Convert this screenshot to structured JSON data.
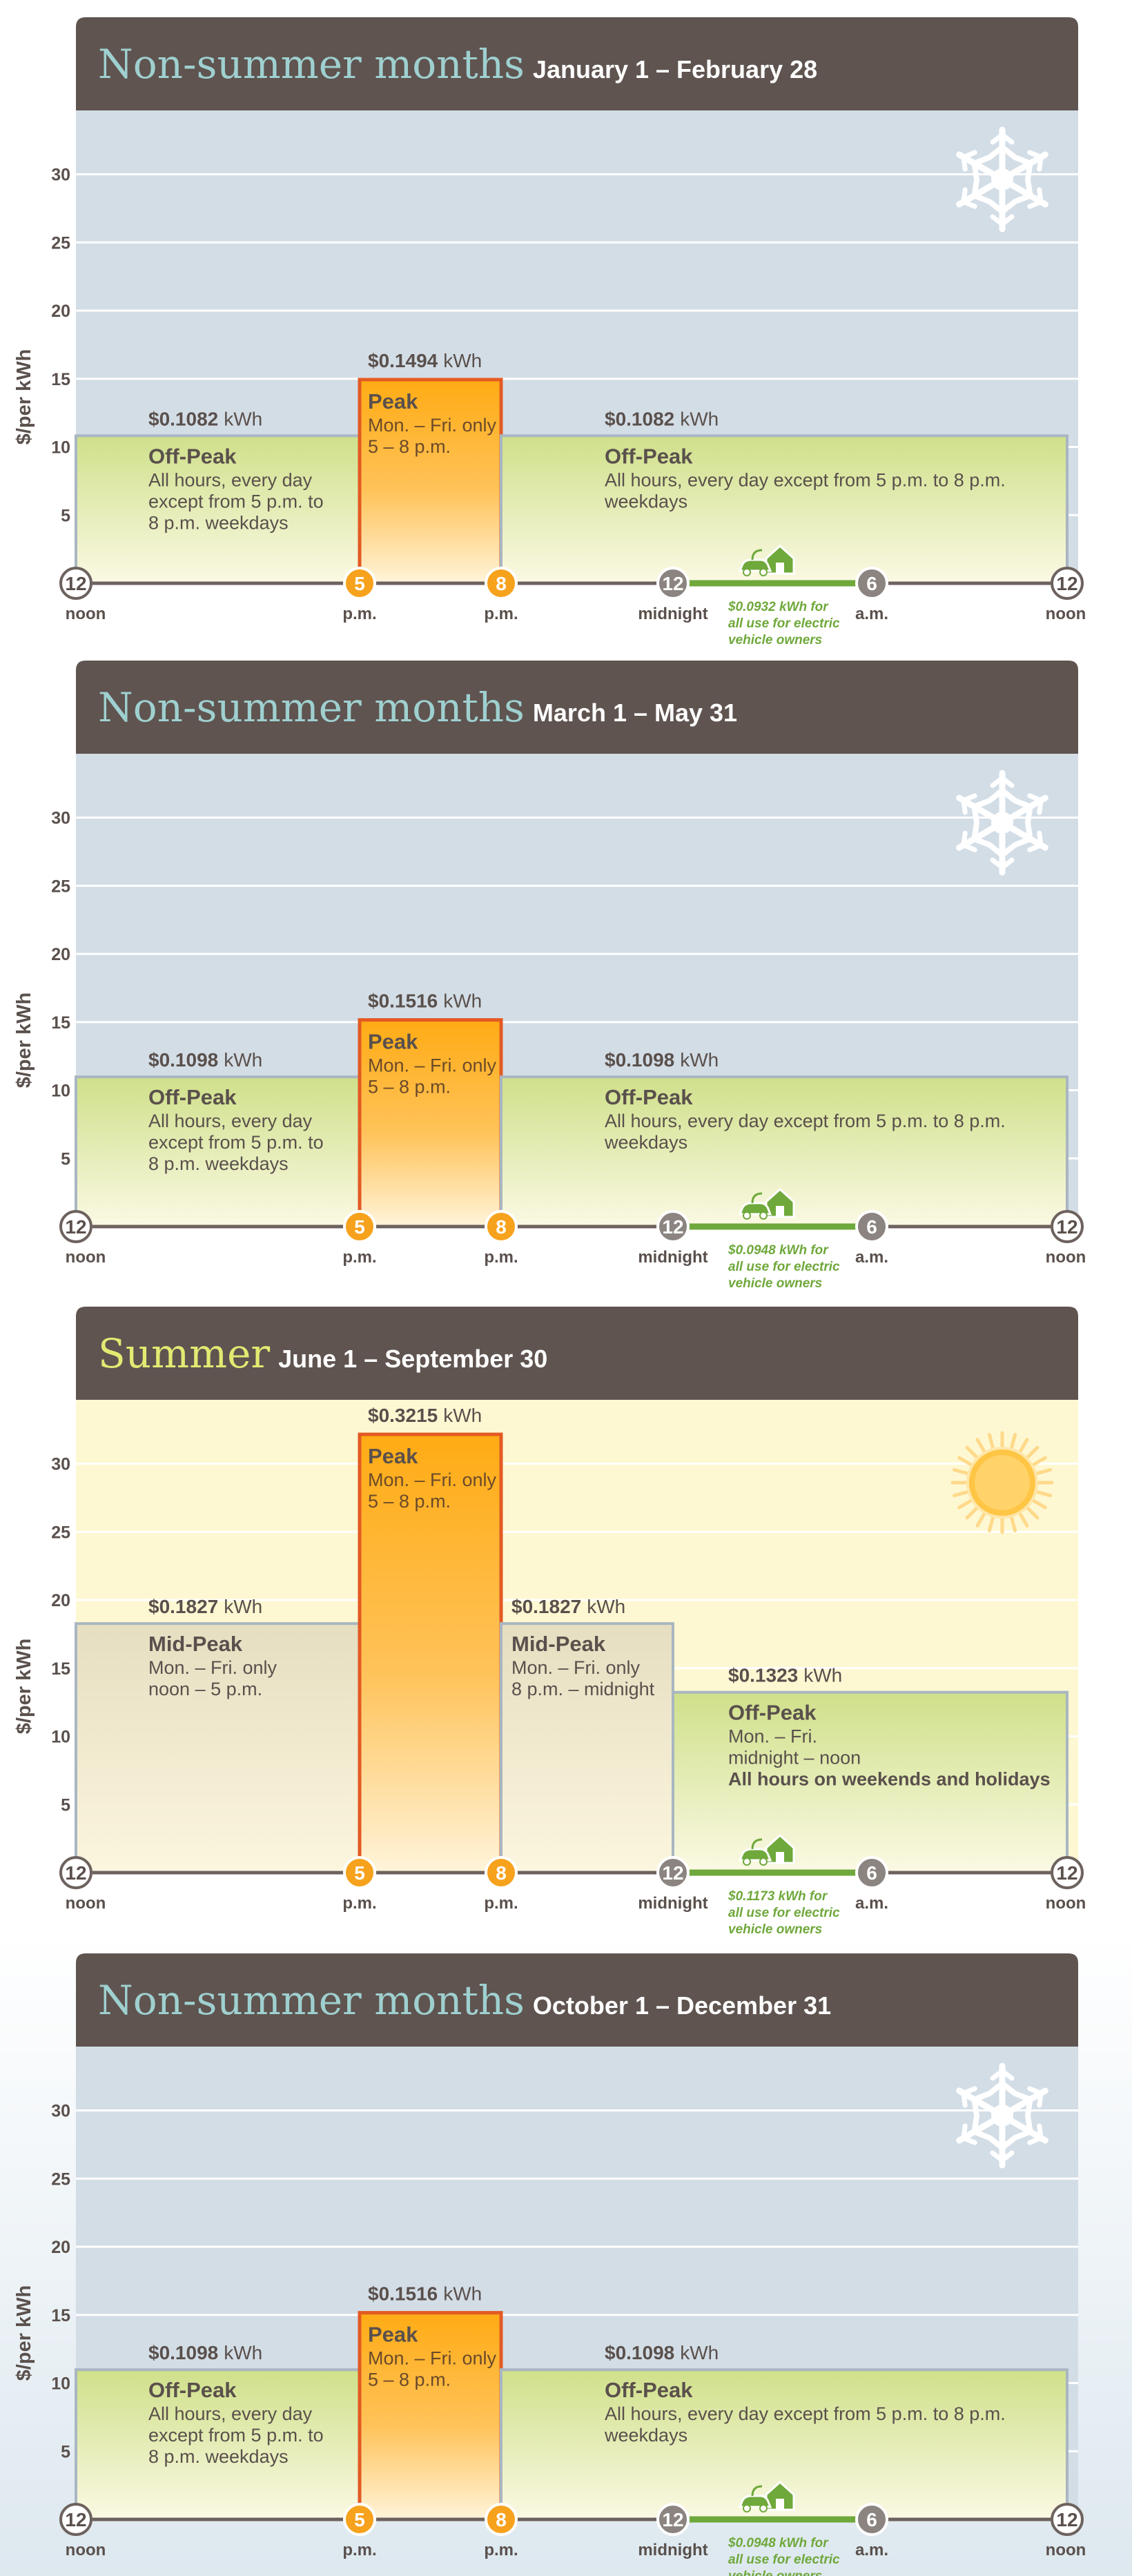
{
  "colors": {
    "header_bg": "#5f5450",
    "winter_title": "#9fd0d0",
    "summer_title": "#e2ea72",
    "winter_bg": "#d3dde6",
    "summer_bg": "#fdf8d2",
    "peak_fill": "#ffab14",
    "peak_stroke": "#e35a23",
    "offpeak_fill": "#d7e69a",
    "midpeak_fill": "#eae3c6",
    "ev_green": "#6fa83b",
    "axis_line": "#6d625e",
    "hour_marker_peak": "#f6a21d",
    "hour_marker_other": "#8b8480",
    "text_dark": "#5a504c"
  },
  "icons": {
    "winter": "snowflake-icon",
    "summer": "sun-icon",
    "ev": "electric-car-house-icon"
  },
  "common": {
    "ylabel": "$/per kWh",
    "yticks": [
      5,
      10,
      15,
      20,
      25,
      30
    ],
    "ylim": [
      0,
      32
    ],
    "x_ticks": [
      {
        "hour": 12,
        "sub": "noon",
        "kind": "other"
      },
      {
        "hour": 5,
        "sub": "p.m.",
        "kind": "peak"
      },
      {
        "hour": 8,
        "sub": "p.m.",
        "kind": "peak"
      },
      {
        "hour": 12,
        "sub": "midnight",
        "kind": "other"
      },
      {
        "hour": 6,
        "sub": "a.m.",
        "kind": "other"
      },
      {
        "hour": 12,
        "sub": "noon",
        "kind": "other"
      }
    ],
    "unit": "kWh"
  },
  "chart_data": [
    {
      "type": "bar",
      "season": "winter",
      "title_main": "Non-summer months",
      "title_dates": "January 1 – February 28",
      "ylabel": "$/per kWh",
      "ylim": [
        0,
        32
      ],
      "periods": [
        {
          "kind": "offpeak",
          "start": 0,
          "end": 5,
          "rate_text": "$0.1082",
          "value": 10.82,
          "label": "Off-Peak",
          "desc": [
            "All hours, every day",
            "except from 5 p.m. to",
            "8 p.m. weekdays"
          ]
        },
        {
          "kind": "peak",
          "start": 5,
          "end": 8,
          "rate_text": "$0.1494",
          "value": 14.94,
          "label": "Peak",
          "desc": [
            "Mon. – Fri. only",
            "5 – 8 p.m."
          ]
        },
        {
          "kind": "offpeak",
          "start": 8,
          "end": 24,
          "rate_text": "$0.1082",
          "value": 10.82,
          "label": "Off-Peak",
          "desc": [
            "All hours, every day except from 5 p.m. to 8 p.m.",
            "weekdays"
          ]
        }
      ],
      "ev": {
        "start": 12,
        "end": 18,
        "rate_text": "$0.0932",
        "value": 9.32,
        "lines": [
          "$0.0932 kWh for",
          "all use for electric",
          "vehicle owners"
        ]
      }
    },
    {
      "type": "bar",
      "season": "winter",
      "title_main": "Non-summer months",
      "title_dates": "March 1 – May 31",
      "ylabel": "$/per kWh",
      "ylim": [
        0,
        32
      ],
      "periods": [
        {
          "kind": "offpeak",
          "start": 0,
          "end": 5,
          "rate_text": "$0.1098",
          "value": 10.98,
          "label": "Off-Peak",
          "desc": [
            "All hours, every day",
            "except from 5 p.m. to",
            "8 p.m. weekdays"
          ]
        },
        {
          "kind": "peak",
          "start": 5,
          "end": 8,
          "rate_text": "$0.1516",
          "value": 15.16,
          "label": "Peak",
          "desc": [
            "Mon. – Fri. only",
            "5 – 8 p.m."
          ]
        },
        {
          "kind": "offpeak",
          "start": 8,
          "end": 24,
          "rate_text": "$0.1098",
          "value": 10.98,
          "label": "Off-Peak",
          "desc": [
            "All hours, every day except from 5 p.m. to 8 p.m.",
            "weekdays"
          ]
        }
      ],
      "ev": {
        "start": 12,
        "end": 18,
        "rate_text": "$0.0948",
        "value": 9.48,
        "lines": [
          "$0.0948 kWh for",
          "all use for electric",
          "vehicle owners"
        ]
      }
    },
    {
      "type": "bar",
      "season": "summer",
      "title_main": "Summer",
      "title_dates": "June 1 – September 30",
      "ylabel": "$/per kWh",
      "ylim": [
        0,
        32
      ],
      "periods": [
        {
          "kind": "midpeak",
          "start": 0,
          "end": 5,
          "rate_text": "$0.1827",
          "value": 18.27,
          "label": "Mid-Peak",
          "desc": [
            "Mon. – Fri. only",
            "noon – 5 p.m."
          ]
        },
        {
          "kind": "peak",
          "start": 5,
          "end": 8,
          "rate_text": "$0.3215",
          "value": 32.15,
          "label": "Peak",
          "desc": [
            "Mon. – Fri. only",
            "5 – 8 p.m."
          ]
        },
        {
          "kind": "midpeak",
          "start": 8,
          "end": 12,
          "rate_text": "$0.1827",
          "value": 18.27,
          "label": "Mid-Peak",
          "desc": [
            "Mon. – Fri. only",
            "8 p.m. – midnight"
          ]
        },
        {
          "kind": "offpeak",
          "start": 12,
          "end": 24,
          "rate_text": "$0.1323",
          "value": 13.23,
          "label": "Off-Peak",
          "desc": [
            "Mon. – Fri.",
            "midnight – noon"
          ],
          "desc_bold": "All hours on weekends and holidays"
        }
      ],
      "ev": {
        "start": 12,
        "end": 18,
        "rate_text": "$0.1173",
        "value": 11.73,
        "lines": [
          "$0.1173 kWh for",
          "all use for electric",
          "vehicle owners"
        ]
      }
    },
    {
      "type": "bar",
      "season": "winter",
      "title_main": "Non-summer months",
      "title_dates": "October 1 – December 31",
      "ylabel": "$/per kWh",
      "ylim": [
        0,
        32
      ],
      "periods": [
        {
          "kind": "offpeak",
          "start": 0,
          "end": 5,
          "rate_text": "$0.1098",
          "value": 10.98,
          "label": "Off-Peak",
          "desc": [
            "All hours, every day",
            "except from 5 p.m. to",
            "8 p.m. weekdays"
          ]
        },
        {
          "kind": "peak",
          "start": 5,
          "end": 8,
          "rate_text": "$0.1516",
          "value": 15.16,
          "label": "Peak",
          "desc": [
            "Mon. – Fri. only",
            "5 – 8 p.m."
          ]
        },
        {
          "kind": "offpeak",
          "start": 8,
          "end": 24,
          "rate_text": "$0.1098",
          "value": 10.98,
          "label": "Off-Peak",
          "desc": [
            "All hours, every day except from 5 p.m. to 8 p.m.",
            "weekdays"
          ]
        }
      ],
      "ev": {
        "start": 12,
        "end": 18,
        "rate_text": "$0.0948",
        "value": 9.48,
        "lines": [
          "$0.0948 kWh for",
          "all use for electric",
          "vehicle owners"
        ]
      }
    }
  ]
}
